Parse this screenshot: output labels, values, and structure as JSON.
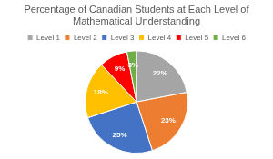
{
  "chart_data": {
    "type": "pie",
    "title": "Percentage of Canadian Students at Each Level of Mathematical Understanding",
    "categories": [
      "Level 1",
      "Level 2",
      "Level 3",
      "Level 4",
      "Level 5",
      "Level 6"
    ],
    "values": [
      22,
      23,
      25,
      18,
      9,
      3
    ],
    "value_labels": [
      "22%",
      "23%",
      "25%",
      "18%",
      "9%",
      "3%"
    ],
    "colors": [
      "#a5a5a5",
      "#ed7d31",
      "#4472c4",
      "#ffc000",
      "#ff0000",
      "#70ad47"
    ],
    "legend": "top",
    "data_labels": true
  }
}
